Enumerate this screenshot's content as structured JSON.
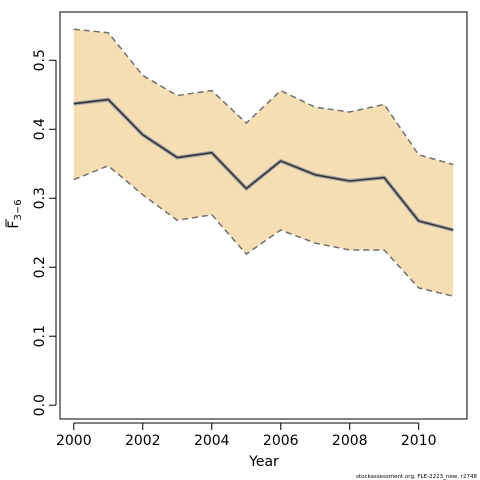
{
  "chart_data": {
    "type": "line",
    "title": "",
    "xlabel": "Year",
    "ylabel_main": "F",
    "ylabel_sub": "3−6",
    "xlim": [
      1999.6,
      2011.4
    ],
    "ylim": [
      -0.02,
      0.57
    ],
    "x_ticks": [
      2000,
      2002,
      2004,
      2006,
      2008,
      2010
    ],
    "y_ticks": [
      0.0,
      0.1,
      0.2,
      0.3,
      0.4,
      0.5
    ],
    "y_tick_labels": [
      "0.0",
      "0.1",
      "0.2",
      "0.3",
      "0.4",
      "0.5"
    ],
    "grid": false,
    "x": [
      2000,
      2001,
      2002,
      2003,
      2004,
      2005,
      2006,
      2007,
      2008,
      2009,
      2010,
      2011
    ],
    "series": [
      {
        "values": [
          0.437,
          0.443,
          0.392,
          0.359,
          0.366,
          0.314,
          0.354,
          0.334,
          0.325,
          0.33,
          0.267,
          0.254
        ]
      }
    ],
    "band": {
      "upper": [
        0.545,
        0.54,
        0.478,
        0.449,
        0.456,
        0.409,
        0.456,
        0.432,
        0.425,
        0.436,
        0.363,
        0.349
      ],
      "lower": [
        0.327,
        0.347,
        0.305,
        0.268,
        0.276,
        0.219,
        0.254,
        0.235,
        0.225,
        0.225,
        0.17,
        0.158
      ]
    },
    "colors": {
      "band_fill": "#F5DEB3",
      "bound_line": "#707070",
      "estimate_line": "#333333",
      "estimate_halo": "#a8a8a8"
    },
    "source_note": "stockassessment.org, FLE-2223_new, r2748"
  }
}
